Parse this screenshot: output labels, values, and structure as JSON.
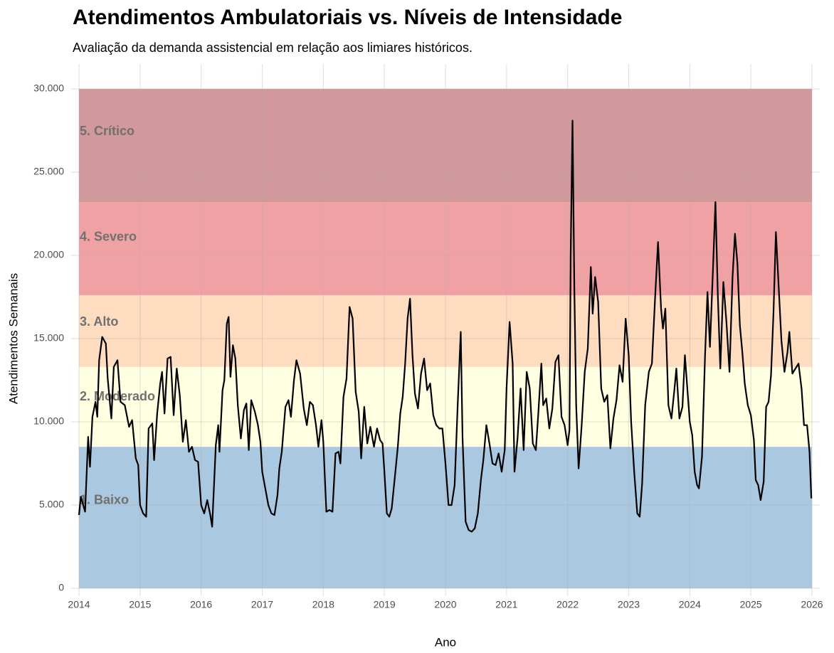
{
  "chart_data": {
    "type": "line",
    "title": "Atendimentos Ambulatoriais vs. Níveis de Intensidade",
    "subtitle": "Avaliação da demanda assistencial em relação aos limiares históricos.",
    "xlabel": "Ano",
    "ylabel": "Atendimentos Semanais",
    "color": "#000000",
    "bands": [
      {
        "name": "1. Baixo",
        "from": 0,
        "to": 8500,
        "color": "#abc8e1"
      },
      {
        "name": "2. Moderado",
        "from": 8500,
        "to": 13300,
        "color": "#ffffe1"
      },
      {
        "name": "3. Alto",
        "from": 13300,
        "to": 17600,
        "color": "#fedcbf"
      },
      {
        "name": "4. Severo",
        "from": 17600,
        "to": 23200,
        "color": "#f0a1a4"
      },
      {
        "name": "5. Crítico",
        "from": 23200,
        "to": 30000,
        "color": "#d1999b"
      }
    ],
    "xlim": [
      2014,
      2026
    ],
    "xticks": [
      2014,
      2015,
      2016,
      2017,
      2018,
      2019,
      2020,
      2021,
      2022,
      2023,
      2024,
      2025,
      2026
    ],
    "ylim": [
      0,
      30000
    ],
    "yticks": [
      0,
      {
        "value": 5000,
        "label": "5.000"
      },
      {
        "value": 10000,
        "label": "10.000"
      },
      {
        "value": 15000,
        "label": "15.000"
      },
      {
        "value": 20000,
        "label": "20.000"
      },
      {
        "value": 25000,
        "label": "25.000"
      },
      {
        "value": 30000,
        "label": "30.000"
      }
    ],
    "grid": true,
    "x": [
      2014.0,
      2014.03,
      2014.1,
      2014.15,
      2014.18,
      2014.22,
      2014.27,
      2014.3,
      2014.33,
      2014.38,
      2014.44,
      2014.47,
      2014.53,
      2014.57,
      2014.63,
      2014.68,
      2014.75,
      2014.82,
      2014.87,
      2014.93,
      2014.97,
      2015.0,
      2015.05,
      2015.1,
      2015.14,
      2015.2,
      2015.23,
      2015.28,
      2015.33,
      2015.36,
      2015.4,
      2015.45,
      2015.5,
      2015.55,
      2015.6,
      2015.65,
      2015.7,
      2015.75,
      2015.8,
      2015.85,
      2015.9,
      2015.95,
      2016.0,
      2016.05,
      2016.1,
      2016.15,
      2016.18,
      2016.24,
      2016.28,
      2016.3,
      2016.35,
      2016.38,
      2016.42,
      2016.45,
      2016.48,
      2016.52,
      2016.56,
      2016.6,
      2016.65,
      2016.7,
      2016.74,
      2016.78,
      2016.82,
      2016.88,
      2016.93,
      2016.97,
      2017.0,
      2017.05,
      2017.1,
      2017.15,
      2017.2,
      2017.25,
      2017.28,
      2017.32,
      2017.38,
      2017.43,
      2017.47,
      2017.52,
      2017.56,
      2017.62,
      2017.68,
      2017.73,
      2017.78,
      2017.83,
      2017.88,
      2017.92,
      2017.97,
      2018.0,
      2018.05,
      2018.1,
      2018.15,
      2018.2,
      2018.25,
      2018.28,
      2018.33,
      2018.38,
      2018.43,
      2018.48,
      2018.53,
      2018.58,
      2018.62,
      2018.67,
      2018.72,
      2018.77,
      2018.83,
      2018.88,
      2018.93,
      2018.97,
      2019.0,
      2019.04,
      2019.08,
      2019.12,
      2019.18,
      2019.22,
      2019.26,
      2019.3,
      2019.34,
      2019.38,
      2019.42,
      2019.46,
      2019.5,
      2019.55,
      2019.6,
      2019.65,
      2019.7,
      2019.75,
      2019.8,
      2019.85,
      2019.9,
      2019.95,
      2020.0,
      2020.05,
      2020.1,
      2020.15,
      2020.2,
      2020.25,
      2020.28,
      2020.33,
      2020.38,
      2020.43,
      2020.48,
      2020.53,
      2020.58,
      2020.62,
      2020.67,
      2020.72,
      2020.77,
      2020.82,
      2020.87,
      2020.92,
      2020.97,
      2021.0,
      2021.05,
      2021.1,
      2021.13,
      2021.18,
      2021.23,
      2021.28,
      2021.33,
      2021.38,
      2021.43,
      2021.48,
      2021.52,
      2021.57,
      2021.6,
      2021.65,
      2021.7,
      2021.75,
      2021.8,
      2021.85,
      2021.9,
      2021.95,
      2022.0,
      2022.03,
      2022.05,
      2022.08,
      2022.11,
      2022.14,
      2022.18,
      2022.23,
      2022.28,
      2022.33,
      2022.38,
      2022.41,
      2022.45,
      2022.5,
      2022.55,
      2022.6,
      2022.65,
      2022.7,
      2022.75,
      2022.8,
      2022.85,
      2022.9,
      2022.95,
      2023.0,
      2023.04,
      2023.09,
      2023.14,
      2023.18,
      2023.22,
      2023.27,
      2023.33,
      2023.38,
      2023.43,
      2023.48,
      2023.53,
      2023.56,
      2023.6,
      2023.65,
      2023.7,
      2023.75,
      2023.78,
      2023.83,
      2023.88,
      2023.92,
      2023.96,
      2024.0,
      2024.04,
      2024.08,
      2024.12,
      2024.15,
      2024.2,
      2024.25,
      2024.29,
      2024.33,
      2024.38,
      2024.42,
      2024.46,
      2024.5,
      2024.55,
      2024.6,
      2024.65,
      2024.7,
      2024.74,
      2024.78,
      2024.82,
      2024.86,
      2024.9,
      2024.95,
      2025.0,
      2025.05,
      2025.08,
      2025.12,
      2025.16,
      2025.21,
      2025.25,
      2025.29,
      2025.33,
      2025.37,
      2025.41,
      2025.45,
      2025.5,
      2025.55,
      2025.6,
      2025.63,
      2025.68,
      2025.73,
      2025.78,
      2025.83,
      2025.87,
      2025.92,
      2025.96,
      2025.99
    ],
    "values": [
      4400,
      5500,
      4600,
      9100,
      7300,
      10300,
      11200,
      10300,
      13700,
      15100,
      14700,
      12600,
      10200,
      13300,
      13700,
      11200,
      11000,
      9700,
      10100,
      7800,
      7400,
      5000,
      4500,
      4300,
      9600,
      9900,
      7700,
      10500,
      12300,
      13000,
      10500,
      13800,
      13900,
      10400,
      13200,
      11600,
      8800,
      10100,
      8200,
      8500,
      7700,
      7600,
      5000,
      4500,
      5300,
      4400,
      3700,
      8600,
      9800,
      8200,
      11900,
      12500,
      15900,
      16300,
      12700,
      14600,
      13800,
      11000,
      9000,
      10700,
      11100,
      8300,
      11300,
      10600,
      9800,
      8800,
      7000,
      6000,
      5000,
      4500,
      4400,
      5600,
      7200,
      8200,
      10900,
      11300,
      10300,
      12500,
      13700,
      12900,
      10800,
      9800,
      11200,
      11000,
      9800,
      8500,
      10100,
      8800,
      4600,
      4700,
      4600,
      8100,
      8200,
      7500,
      11500,
      12600,
      16900,
      16200,
      11800,
      10600,
      7800,
      10900,
      8700,
      9700,
      8500,
      9600,
      8900,
      8700,
      7000,
      4500,
      4300,
      4800,
      7000,
      8500,
      10500,
      11500,
      13500,
      16200,
      17400,
      14000,
      11700,
      10800,
      12900,
      13800,
      11900,
      12300,
      10400,
      9800,
      9600,
      9600,
      7500,
      5000,
      5000,
      6200,
      11000,
      15400,
      9000,
      4000,
      3500,
      3400,
      3600,
      4500,
      6500,
      7700,
      9800,
      8700,
      7500,
      7400,
      8100,
      7000,
      8300,
      12000,
      16000,
      13500,
      7000,
      9000,
      12000,
      8300,
      13000,
      12000,
      8700,
      8300,
      10500,
      13500,
      11000,
      11400,
      9600,
      10800,
      13600,
      14000,
      10300,
      9800,
      8600,
      9500,
      20000,
      28100,
      18000,
      11000,
      7200,
      9800,
      13000,
      14400,
      19300,
      16500,
      18700,
      17200,
      12000,
      11200,
      11600,
      8400,
      10200,
      11300,
      13400,
      12400,
      16200,
      14000,
      10000,
      7000,
      4500,
      4300,
      6300,
      11000,
      13000,
      13500,
      17300,
      20800,
      16800,
      15600,
      16800,
      11000,
      10200,
      12000,
      13200,
      10200,
      10900,
      14000,
      12000,
      10000,
      9200,
      7000,
      6200,
      6000,
      7900,
      14000,
      17800,
      14500,
      19200,
      23200,
      17500,
      13200,
      18400,
      16000,
      13000,
      18700,
      21300,
      19500,
      15800,
      14200,
      12300,
      11000,
      10400,
      8900,
      6500,
      6200,
      5300,
      6400,
      10900,
      11200,
      12800,
      16500,
      21400,
      18500,
      14900,
      13000,
      14200,
      15400,
      12900,
      13200,
      13500,
      12000,
      9800,
      9800,
      8200,
      5400
    ]
  }
}
